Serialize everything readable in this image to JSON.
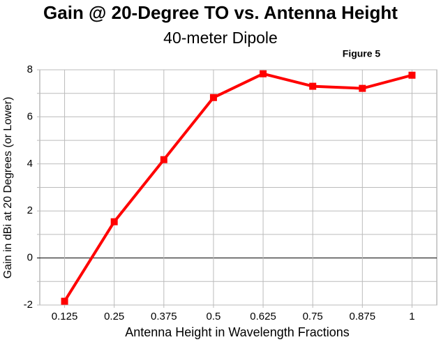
{
  "chart_data": {
    "type": "line",
    "title": "Gain @ 20-Degree TO vs. Antenna Height",
    "subtitle": "40-meter Dipole",
    "annotation": "Figure 5",
    "x_label": "Antenna Height in Wavelength Fractions",
    "y_label": "Gain in dBi at 20 Degrees (or Lower)",
    "categories": [
      "0.125",
      "0.25",
      "0.375",
      "0.5",
      "0.625",
      "0.75",
      "0.875",
      "1"
    ],
    "series": [
      {
        "name": "Gain",
        "color": "#ff0000",
        "values": [
          -1.84,
          1.54,
          4.18,
          6.82,
          7.83,
          7.3,
          7.21,
          7.77
        ]
      }
    ],
    "ylim": [
      -2,
      8
    ],
    "yticks": [
      -2,
      0,
      2,
      4,
      6,
      8
    ],
    "minor_yticks": [
      -1,
      1,
      3,
      5,
      7
    ],
    "grid": true
  }
}
